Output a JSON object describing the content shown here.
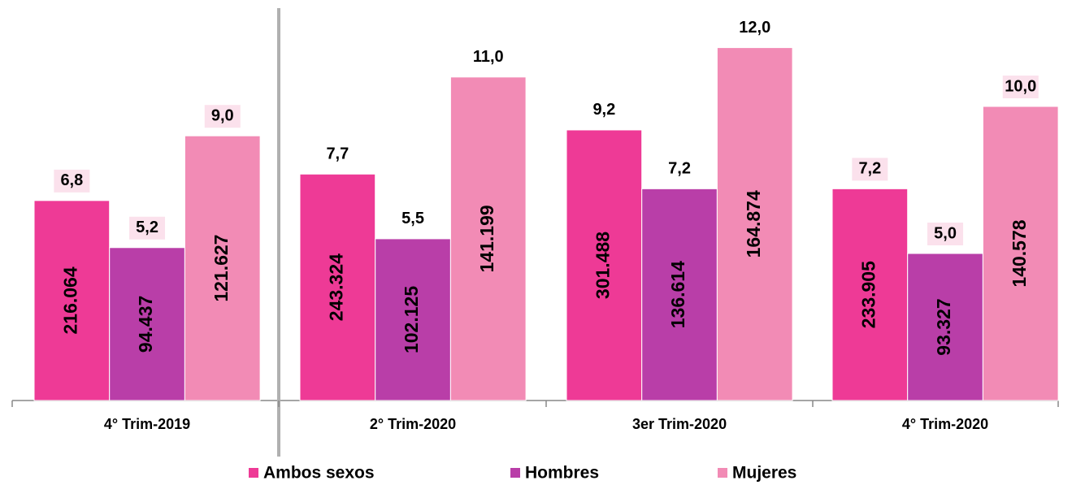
{
  "chart_data": {
    "type": "bar",
    "categories": [
      "4° Trim-2019",
      "2° Trim-2020",
      "3er Trim-2020",
      "4° Trim-2020"
    ],
    "series": [
      {
        "name": "Ambos sexos",
        "color": "#ee3a96",
        "values": [
          6.8,
          7.7,
          9.2,
          7.2
        ],
        "value_labels": [
          "6,8",
          "7,7",
          "9,2",
          "7,2"
        ],
        "counts": [
          216064,
          243324,
          301488,
          233905
        ],
        "count_labels": [
          "216.064",
          "243.324",
          "301.488",
          "233.905"
        ]
      },
      {
        "name": "Hombres",
        "color": "#b93ea8",
        "values": [
          5.2,
          5.5,
          7.2,
          5.0
        ],
        "value_labels": [
          "5,2",
          "5,5",
          "7,2",
          "5,0"
        ],
        "counts": [
          94437,
          102125,
          136614,
          93327
        ],
        "count_labels": [
          "94.437",
          "102.125",
          "136.614",
          "93.327"
        ]
      },
      {
        "name": "Mujeres",
        "color": "#f28bb5",
        "values": [
          9.0,
          11.0,
          12.0,
          10.0
        ],
        "value_labels": [
          "9,0",
          "11,0",
          "12,0",
          "10,0"
        ],
        "counts": [
          121627,
          141199,
          164874,
          140578
        ],
        "count_labels": [
          "121.627",
          "141.199",
          "164.874",
          "140.578"
        ]
      }
    ]
  }
}
